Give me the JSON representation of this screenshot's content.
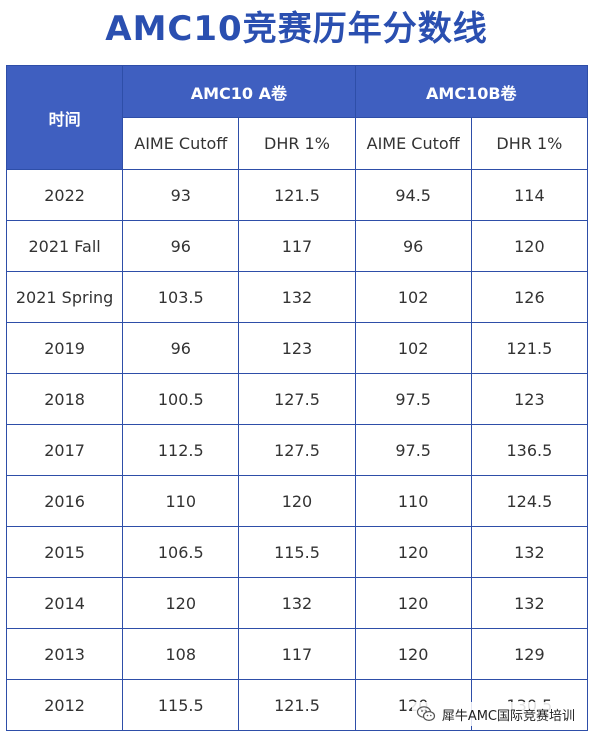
{
  "title": "AMC10竞赛历年分数线",
  "table": {
    "time_header": "时间",
    "groups": [
      {
        "label": "AMC10 A卷"
      },
      {
        "label": "AMC10B卷"
      }
    ],
    "sub_headers": [
      "AIME Cutoff",
      "DHR 1%",
      "AIME Cutoff",
      "DHR 1%"
    ],
    "rows": [
      {
        "time": "2022",
        "a_aime": "93",
        "a_dhr": "121.5",
        "b_aime": "94.5",
        "b_dhr": "114"
      },
      {
        "time": "2021 Fall",
        "a_aime": "96",
        "a_dhr": "117",
        "b_aime": "96",
        "b_dhr": "120"
      },
      {
        "time": "2021 Spring",
        "a_aime": "103.5",
        "a_dhr": "132",
        "b_aime": "102",
        "b_dhr": "126"
      },
      {
        "time": "2019",
        "a_aime": "96",
        "a_dhr": "123",
        "b_aime": "102",
        "b_dhr": "121.5"
      },
      {
        "time": "2018",
        "a_aime": "100.5",
        "a_dhr": "127.5",
        "b_aime": "97.5",
        "b_dhr": "123"
      },
      {
        "time": "2017",
        "a_aime": "112.5",
        "a_dhr": "127.5",
        "b_aime": "97.5",
        "b_dhr": "136.5"
      },
      {
        "time": "2016",
        "a_aime": "110",
        "a_dhr": "120",
        "b_aime": "110",
        "b_dhr": "124.5"
      },
      {
        "time": "2015",
        "a_aime": "106.5",
        "a_dhr": "115.5",
        "b_aime": "120",
        "b_dhr": "132"
      },
      {
        "time": "2014",
        "a_aime": "120",
        "a_dhr": "132",
        "b_aime": "120",
        "b_dhr": "132"
      },
      {
        "time": "2013",
        "a_aime": "108",
        "a_dhr": "117",
        "b_aime": "120",
        "b_dhr": "129"
      },
      {
        "time": "2012",
        "a_aime": "115.5",
        "a_dhr": "121.5",
        "b_aime": "120",
        "b_dhr": "130.5"
      }
    ]
  },
  "watermark": {
    "text": "犀牛AMC国际竞赛培训",
    "icon": "wechat-icon"
  },
  "colors": {
    "title": "#2a4fb0",
    "header_bg": "#3f5fc0",
    "border": "#2e4ea8"
  }
}
